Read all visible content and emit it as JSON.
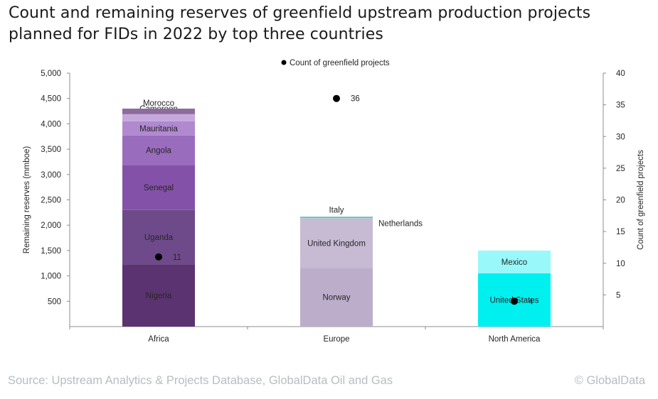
{
  "title": "Count and remaining reserves of greenfield upstream production projects planned for FIDs in 2022 by top three countries",
  "footer": {
    "source": "Source: Upstream Analytics & Projects Database, GlobalData Oil and Gas",
    "copyright": "© GlobalData"
  },
  "chart_data": {
    "type": "bar",
    "stacked": true,
    "title": "Count and remaining reserves of greenfield upstream production projects planned for FIDs in 2022 by top three countries",
    "categories": [
      "Africa",
      "Europe",
      "North America"
    ],
    "ylabel": "Remaining reserves (mmboe)",
    "ylim": [
      0,
      5000
    ],
    "yticks": [
      500,
      1000,
      1500,
      2000,
      2500,
      3000,
      3500,
      4000,
      4500,
      5000
    ],
    "ytick_labels": [
      "500",
      "1,000",
      "1,500",
      "2,000",
      "2,500",
      "3,000",
      "3,500",
      "4,000",
      "4,500",
      "5,000"
    ],
    "y2label": "Count of greenfield projects",
    "y2lim": [
      0,
      40
    ],
    "y2ticks": [
      5,
      10,
      15,
      20,
      25,
      30,
      35,
      40
    ],
    "legend": {
      "entries": [
        "Count of greenfield projects"
      ],
      "position": "top-center"
    },
    "grid": false,
    "stacks": [
      {
        "category": "Africa",
        "segments": [
          {
            "name": "Nigeria",
            "value": 1230,
            "color": "#5b3370"
          },
          {
            "name": "Uganda",
            "value": 1070,
            "color": "#6e4a8a"
          },
          {
            "name": "Senegal",
            "value": 890,
            "color": "#8451a8"
          },
          {
            "name": "Angola",
            "value": 580,
            "color": "#9a6cbd"
          },
          {
            "name": "Mauritania",
            "value": 280,
            "color": "#b089cf"
          },
          {
            "name": "Cameroon",
            "value": 140,
            "color": "#c6a8dc"
          },
          {
            "name": "Morocco",
            "value": 110,
            "color": "#8e6b9f"
          }
        ]
      },
      {
        "category": "Europe",
        "segments": [
          {
            "name": "Norway",
            "value": 1160,
            "color": "#bcaecb"
          },
          {
            "name": "United Kingdom",
            "value": 970,
            "color": "#c7bbd4"
          },
          {
            "name": "Netherlands",
            "value": 20,
            "color": "#a9d3d6"
          },
          {
            "name": "Italy",
            "value": 15,
            "color": "#3fa39a"
          }
        ]
      },
      {
        "category": "North America",
        "segments": [
          {
            "name": "United States",
            "value": 1050,
            "color": "#00f0f0"
          },
          {
            "name": "Mexico",
            "value": 450,
            "color": "#99f9fa"
          }
        ]
      }
    ],
    "series": [
      {
        "name": "Count of greenfield projects",
        "type": "scatter",
        "axis": "secondary",
        "values": [
          11,
          36,
          4
        ],
        "labels": [
          "11",
          "36",
          "4"
        ],
        "color": "#000000"
      }
    ]
  }
}
